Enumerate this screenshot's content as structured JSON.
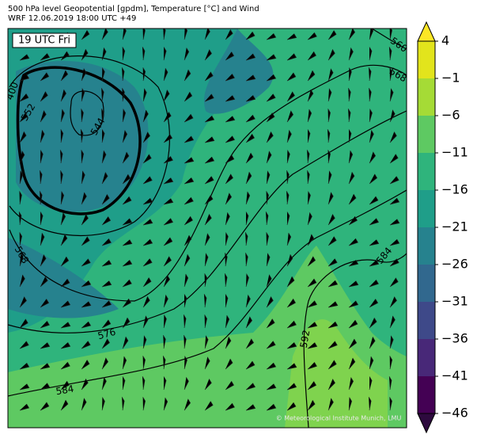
{
  "header": {
    "title": "500 hPa level Geopotential [gpdm], Temperature [°C] and Wind",
    "subtitle": "WRF 12.06.2019 18:00 UTC +49"
  },
  "map": {
    "time_label": "19 UTC Fri",
    "contour_labels": [
      400,
      552,
      544,
      560,
      568,
      568,
      576,
      584,
      584,
      592
    ],
    "credit": "© Meteorological Institute Munich, LMU"
  },
  "colorbar": {
    "ticks": [
      {
        "value": 4,
        "label": "4"
      },
      {
        "value": -1,
        "label": "−1"
      },
      {
        "value": -6,
        "label": "−6"
      },
      {
        "value": -11,
        "label": "−11"
      },
      {
        "value": -16,
        "label": "−16"
      },
      {
        "value": -21,
        "label": "−21"
      },
      {
        "value": -26,
        "label": "−26"
      },
      {
        "value": -31,
        "label": "−31"
      },
      {
        "value": -36,
        "label": "−36"
      },
      {
        "value": -41,
        "label": "−41"
      },
      {
        "value": -46,
        "label": "−46"
      }
    ],
    "colors": [
      "#e2e41c",
      "#a5db36",
      "#5ec962",
      "#2fb47c",
      "#1f9e89",
      "#26828e",
      "#31688e",
      "#3e4989",
      "#482878",
      "#440154"
    ],
    "over_color": "#fde725",
    "under_color": "#2d0a3e"
  }
}
